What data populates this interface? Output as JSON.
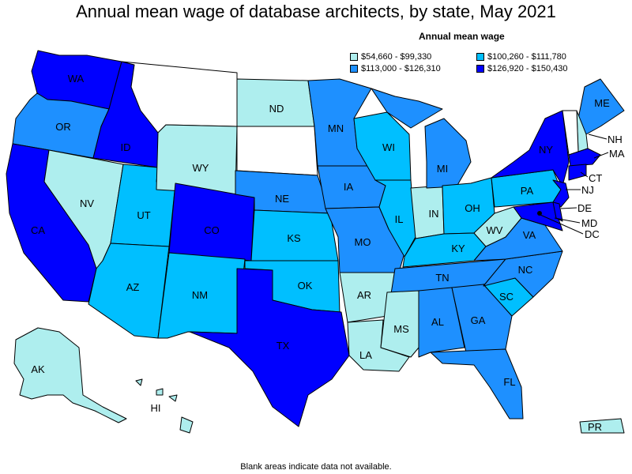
{
  "title": "Annual mean wage of database architects, by state, May 2021",
  "legend": {
    "title": "Annual mean wage",
    "items": [
      {
        "label": "$54,660 - $99,330",
        "color": "#aeeeee"
      },
      {
        "label": "$113,000 - $126,310",
        "color": "#1e90ff"
      },
      {
        "label": "$100,260 - $111,780",
        "color": "#00bfff"
      },
      {
        "label": "$126,920 - $150,430",
        "color": "#0000ff"
      }
    ]
  },
  "footnote": "Blank areas indicate data not available.",
  "colors": {
    "tier1": "#aeeeee",
    "tier2": "#00bfff",
    "tier3": "#1e90ff",
    "tier4": "#0000ff",
    "blank": "#ffffff"
  },
  "states": {
    "WA": "WA",
    "OR": "OR",
    "CA": "CA",
    "ID": "ID",
    "NV": "NV",
    "UT": "UT",
    "AZ": "AZ",
    "WY": "WY",
    "CO": "CO",
    "NM": "NM",
    "ND": "ND",
    "NE": "NE",
    "KS": "KS",
    "OK": "OK",
    "TX": "TX",
    "MN": "MN",
    "IA": "IA",
    "MO": "MO",
    "AR": "AR",
    "LA": "LA",
    "WI": "WI",
    "IL": "IL",
    "MS": "MS",
    "MI": "MI",
    "IN": "IN",
    "KY": "KY",
    "TN": "TN",
    "AL": "AL",
    "OH": "OH",
    "GA": "GA",
    "FL": "FL",
    "SC": "SC",
    "NC": "NC",
    "WV": "WV",
    "VA": "VA",
    "PA": "PA",
    "NY": "NY",
    "ME": "ME",
    "NH": "NH",
    "MA": "MA",
    "CT": "CT",
    "NJ": "NJ",
    "DE": "DE",
    "MD": "MD",
    "DC": "DC",
    "AK": "AK",
    "HI": "HI",
    "PR": "PR"
  }
}
